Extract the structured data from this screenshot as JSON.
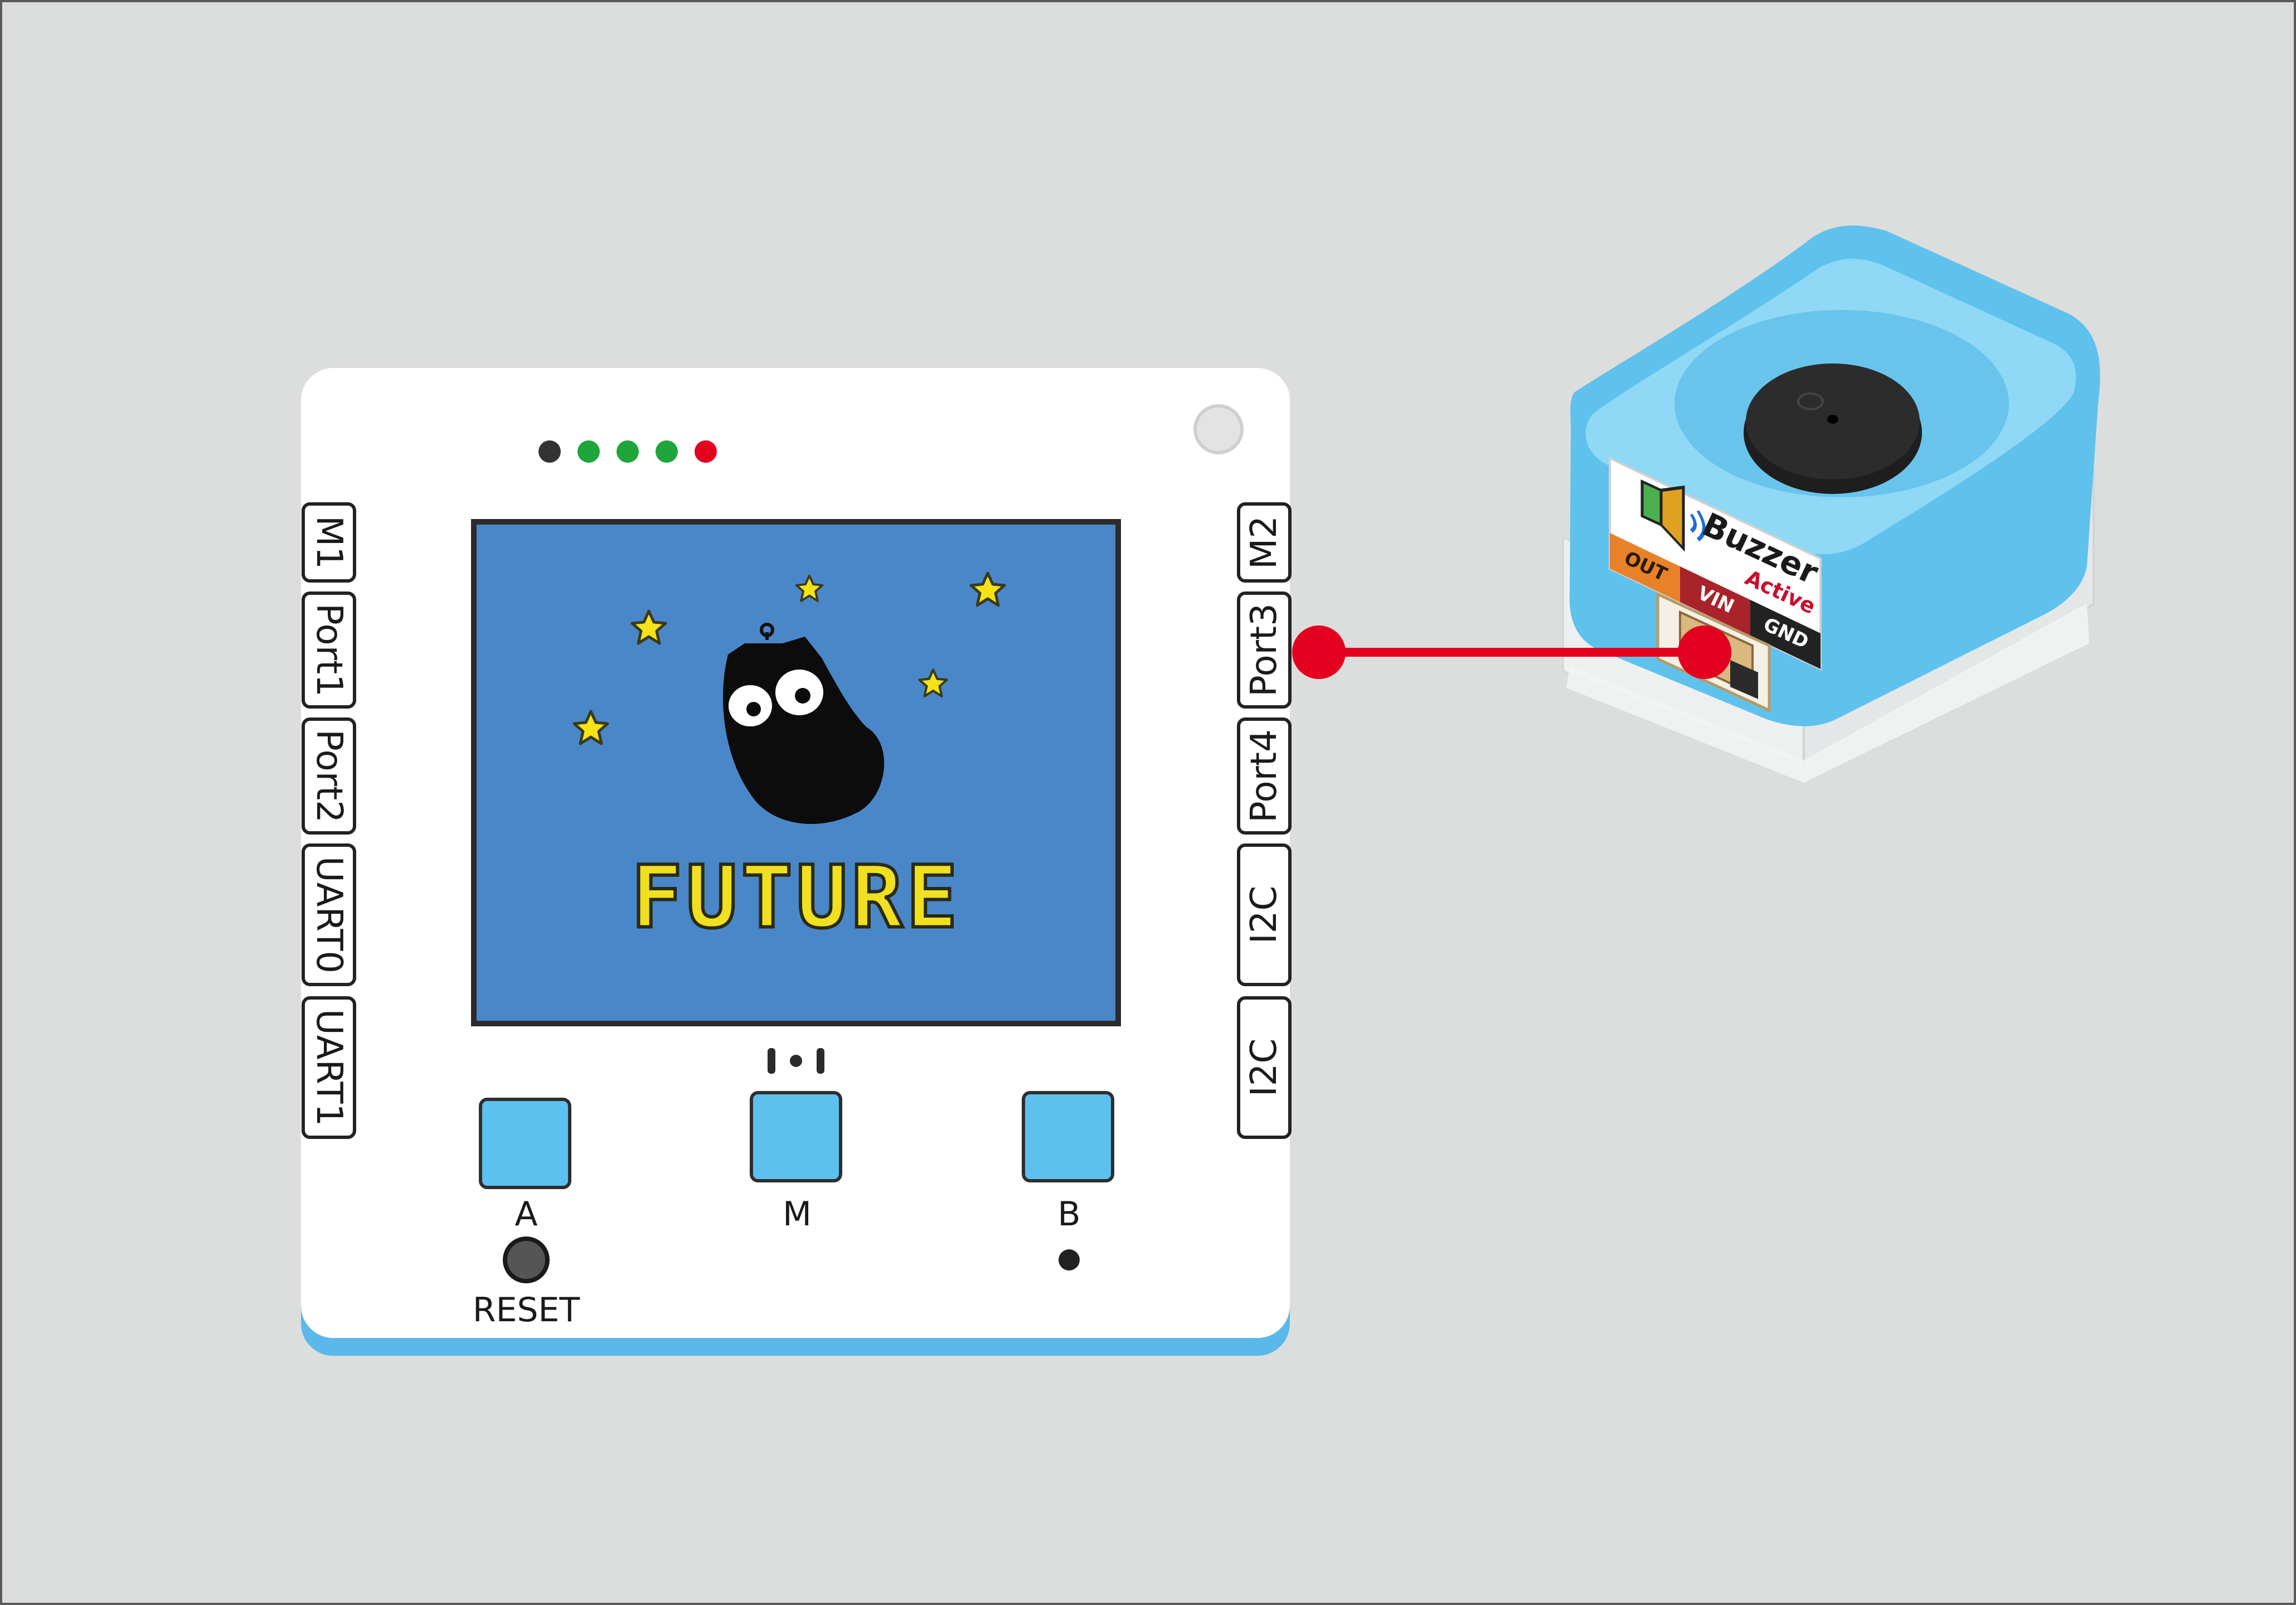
{
  "colors": {
    "background": "#dcdedd",
    "board": "#ffffff",
    "board_edge": "#5bb8ea",
    "screen": "#4a87c8",
    "button": "#5cc1ee",
    "wire": "#e4001f",
    "led_off": "#333333",
    "led_green": "#1fa53a",
    "led_red": "#e4001f",
    "module_cap": "#6ccbf0",
    "star": "#f5e318",
    "future_text": "#f0e020"
  },
  "board": {
    "ports_left": [
      "M1",
      "Port1",
      "Port2",
      "UART0",
      "UART1"
    ],
    "ports_right": [
      "M2",
      "Port3",
      "Port4",
      "I2C",
      "I2C"
    ],
    "leds": [
      "off",
      "green",
      "green",
      "green",
      "red"
    ],
    "screen_text": "FUTURE",
    "buttons": [
      "A",
      "M",
      "B"
    ],
    "reset_label": "RESET",
    "mic_icon": "microphone-hole-icon"
  },
  "module": {
    "name": "Buzzer",
    "subname": "Active",
    "pins": [
      "OUT",
      "VIN",
      "GND"
    ],
    "pin_colors": [
      "#e8822a",
      "#a9232a",
      "#222222"
    ],
    "icon": "speaker-icon"
  },
  "connection": {
    "from_port": "Port3",
    "to": "Buzzer"
  }
}
